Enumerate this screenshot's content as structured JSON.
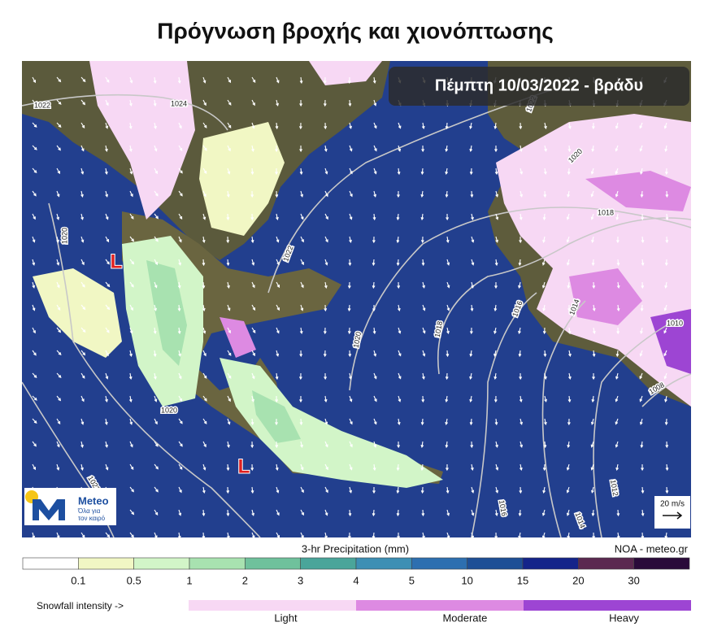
{
  "header": {
    "title": "Πρόγνωση βροχής και χιονόπτωσης"
  },
  "map": {
    "timestamp": "Πέμπτη 10/03/2022 - βράδυ",
    "isobar_labels": [
      "1022",
      "1024",
      "1022",
      "1020",
      "1018",
      "1020",
      "1022",
      "1020",
      "1018",
      "1016",
      "1014",
      "1010",
      "1008",
      "1020",
      "1022",
      "1016",
      "1014",
      "1012"
    ],
    "low_markers": [
      "L",
      "L"
    ],
    "logo": {
      "name": "Meteo",
      "tagline_1": "Όλα για",
      "tagline_2": "τον καιρό"
    },
    "wind_scale": "20 m/s",
    "source": "NOA - meteo.gr"
  },
  "precip_legend": {
    "title": "3-hr Precipitation (mm)",
    "colors": [
      "#ffffff",
      "#f1f7c4",
      "#d2f5c8",
      "#a8e2b0",
      "#6fc19c",
      "#4aa59a",
      "#3d8fb4",
      "#2d6fb0",
      "#1e4f96",
      "#14248a",
      "#5b2850",
      "#2a0a3a"
    ],
    "ticks": [
      "0.1",
      "0.5",
      "1",
      "2",
      "3",
      "4",
      "5",
      "10",
      "15",
      "20",
      "30"
    ]
  },
  "snow_legend": {
    "label": "Snowfall intensity ->",
    "levels": [
      {
        "name": "Light",
        "color": "#f7d8f4"
      },
      {
        "name": "Moderate",
        "color": "#dd8ae2"
      },
      {
        "name": "Heavy",
        "color": "#9d45d3"
      }
    ]
  }
}
